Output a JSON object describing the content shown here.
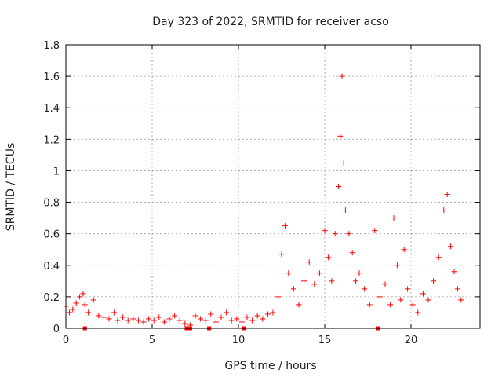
{
  "chart_data": {
    "type": "scatter",
    "title": "Day 323 of 2022, SRMTID for receiver acso",
    "xlabel": "GPS time / hours",
    "ylabel": "SRMTID / TECUs",
    "xlim": [
      0,
      24
    ],
    "ylim": [
      0,
      1.8
    ],
    "xticks": [
      0,
      5,
      10,
      15,
      20
    ],
    "xtick_labels": [
      "0",
      "5",
      "10",
      "15",
      "20"
    ],
    "yticks": [
      0,
      0.2,
      0.4,
      0.6,
      0.8,
      1,
      1.2,
      1.4,
      1.6,
      1.8
    ],
    "ytick_labels": [
      "0",
      "0.2",
      "0.4",
      "0.6",
      "0.8",
      "1",
      "1.2",
      "1.4",
      "1.6",
      "1.8"
    ],
    "grid": true,
    "marker": "plus",
    "color": "#ff0000",
    "series": [
      {
        "name": "SRMTID",
        "x": [
          0.0,
          0.2,
          0.4,
          0.6,
          0.8,
          1.0,
          1.1,
          1.3,
          1.6,
          1.9,
          2.2,
          2.5,
          2.8,
          3.0,
          3.3,
          3.6,
          3.9,
          4.2,
          4.5,
          4.8,
          5.1,
          5.4,
          5.7,
          6.0,
          6.3,
          6.6,
          6.9,
          7.2,
          7.5,
          7.8,
          8.1,
          8.4,
          8.7,
          9.0,
          9.3,
          9.6,
          9.9,
          10.2,
          10.5,
          10.8,
          11.1,
          11.4,
          11.7,
          12.0,
          12.3,
          12.5,
          12.7,
          12.9,
          13.2,
          13.5,
          13.8,
          14.1,
          14.4,
          14.7,
          15.0,
          15.2,
          15.4,
          15.6,
          15.8,
          15.9,
          16.0,
          16.1,
          16.2,
          16.4,
          16.6,
          16.8,
          17.0,
          17.3,
          17.6,
          17.9,
          18.2,
          18.5,
          18.8,
          19.0,
          19.2,
          19.4,
          19.6,
          19.8,
          20.1,
          20.4,
          20.7,
          21.0,
          21.3,
          21.6,
          21.9,
          22.1,
          22.3,
          22.5,
          22.7,
          22.9
        ],
        "y": [
          0.14,
          0.1,
          0.12,
          0.16,
          0.2,
          0.22,
          0.15,
          0.1,
          0.18,
          0.08,
          0.07,
          0.06,
          0.1,
          0.05,
          0.07,
          0.05,
          0.06,
          0.05,
          0.04,
          0.06,
          0.05,
          0.07,
          0.04,
          0.06,
          0.08,
          0.05,
          0.03,
          0.02,
          0.08,
          0.06,
          0.05,
          0.09,
          0.04,
          0.07,
          0.1,
          0.05,
          0.06,
          0.04,
          0.07,
          0.05,
          0.08,
          0.06,
          0.09,
          0.1,
          0.2,
          0.47,
          0.65,
          0.35,
          0.25,
          0.15,
          0.3,
          0.42,
          0.28,
          0.35,
          0.62,
          0.45,
          0.3,
          0.6,
          0.9,
          1.22,
          1.6,
          1.05,
          0.75,
          0.6,
          0.48,
          0.3,
          0.35,
          0.25,
          0.15,
          0.62,
          0.2,
          0.28,
          0.15,
          0.7,
          0.4,
          0.18,
          0.5,
          0.25,
          0.15,
          0.1,
          0.22,
          0.18,
          0.3,
          0.45,
          0.75,
          0.85,
          0.52,
          0.36,
          0.25,
          0.18
        ],
        "floor_markers_x": [
          1.1,
          7.0,
          7.2,
          8.3,
          10.3,
          18.1
        ]
      }
    ]
  }
}
